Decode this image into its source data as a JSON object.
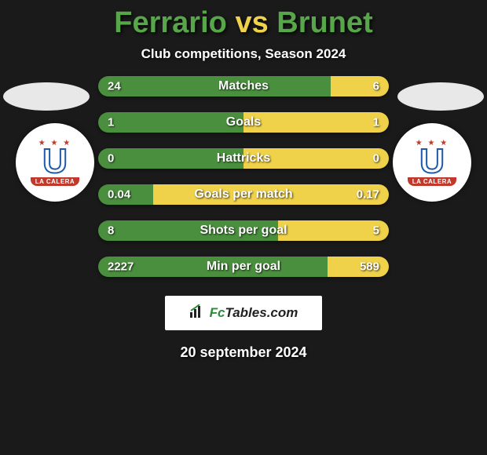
{
  "title": {
    "player1": "Ferrario",
    "vs": "vs",
    "player2": "Brunet",
    "fontsize": 38,
    "player1_color": "#58a64a",
    "vs_color": "#f0d24a",
    "player2_color": "#58a64a"
  },
  "subtitle": {
    "text": "Club competitions, Season 2024",
    "fontsize": 17,
    "color": "#ffffff"
  },
  "colors": {
    "background": "#1a1a1a",
    "left_seg": "#4a8f3e",
    "right_seg": "#f0d24a",
    "oval": "#e8e8e8",
    "bar_text": "#ffffff",
    "bar_label_fontsize": 16,
    "bar_value_fontsize": 15
  },
  "logo": {
    "banner_text": "LA CALERA"
  },
  "stats": [
    {
      "label": "Matches",
      "left_val": "24",
      "right_val": "6",
      "left_pct": 80,
      "right_pct": 20
    },
    {
      "label": "Goals",
      "left_val": "1",
      "right_val": "1",
      "left_pct": 50,
      "right_pct": 50
    },
    {
      "label": "Hattricks",
      "left_val": "0",
      "right_val": "0",
      "left_pct": 50,
      "right_pct": 50
    },
    {
      "label": "Goals per match",
      "left_val": "0.04",
      "right_val": "0.17",
      "left_pct": 19,
      "right_pct": 81
    },
    {
      "label": "Shots per goal",
      "left_val": "8",
      "right_val": "5",
      "left_pct": 62,
      "right_pct": 38
    },
    {
      "label": "Min per goal",
      "left_val": "2227",
      "right_val": "589",
      "left_pct": 79,
      "right_pct": 21
    }
  ],
  "footer": {
    "site": "FcTables.com",
    "fontsize": 17
  },
  "date": {
    "text": "20 september 2024",
    "fontsize": 18,
    "color": "#ffffff"
  }
}
